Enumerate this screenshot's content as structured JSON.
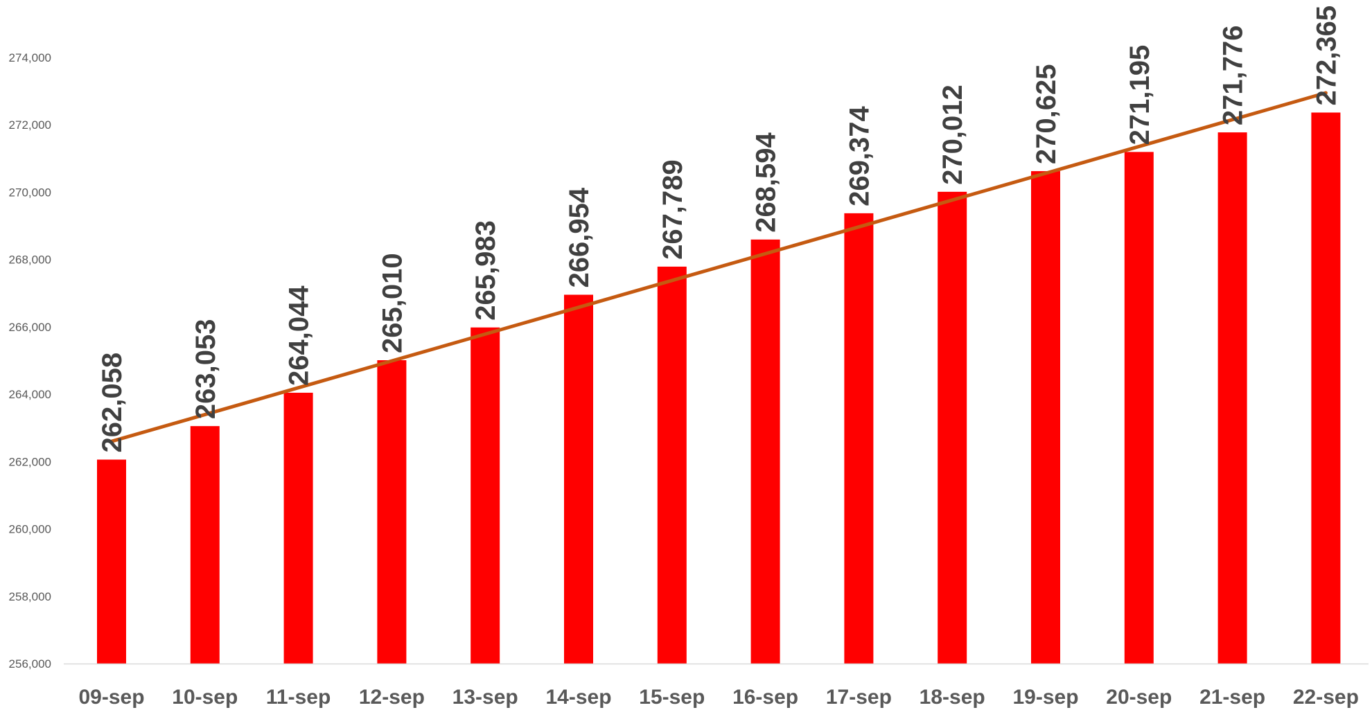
{
  "chart_data": {
    "type": "bar",
    "title": "",
    "xlabel": "",
    "ylabel": "",
    "categories": [
      "09-sep",
      "10-sep",
      "11-sep",
      "12-sep",
      "13-sep",
      "14-sep",
      "15-sep",
      "16-sep",
      "17-sep",
      "18-sep",
      "19-sep",
      "20-sep",
      "21-sep",
      "22-sep"
    ],
    "values": [
      262058,
      263053,
      264044,
      265010,
      265983,
      266954,
      267789,
      268594,
      269374,
      270012,
      270625,
      271195,
      271776,
      272365
    ],
    "value_labels": [
      "262,058",
      "263,053",
      "264,044",
      "265,010",
      "265,983",
      "266,954",
      "267,789",
      "268,594",
      "269,374",
      "270,012",
      "270,625",
      "271,195",
      "271,776",
      "272,365"
    ],
    "ylim": [
      256000,
      274000
    ],
    "y_ticks": [
      256000,
      258000,
      260000,
      262000,
      264000,
      266000,
      268000,
      270000,
      272000,
      274000
    ],
    "y_tick_labels": [
      "256,000",
      "258,000",
      "260,000",
      "262,000",
      "264,000",
      "266,000",
      "268,000",
      "270,000",
      "272,000",
      "274,000"
    ],
    "trendline": {
      "type": "linear",
      "start": 262600,
      "end": 272950
    },
    "grid": false,
    "legend": "none",
    "colors": {
      "bar": "#ff0000",
      "trendline": "#c55a11",
      "axis_line": "#d9d9d9",
      "tick_text": "#595959",
      "data_label_text": "#404040"
    }
  }
}
